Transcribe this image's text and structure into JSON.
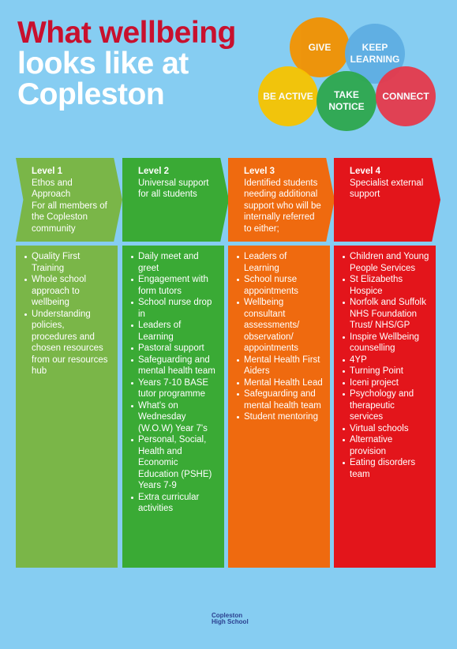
{
  "header": {
    "title_lines": [
      "What wellbeing",
      "looks like at",
      "Copleston"
    ]
  },
  "circles": [
    {
      "label_lines": [
        "GIVE"
      ],
      "color": "#f39200"
    },
    {
      "label_lines": [
        "KEEP",
        "LEARNING"
      ],
      "color": "#5eaee3"
    },
    {
      "label_lines": [
        "BE ACTIVE"
      ],
      "color": "#f7c400"
    },
    {
      "label_lines": [
        "TAKE",
        "NOTICE"
      ],
      "color": "#2ea84e"
    },
    {
      "label_lines": [
        "CONNECT"
      ],
      "color": "#e53a4c"
    }
  ],
  "levels": [
    {
      "heading": "Level 1",
      "header_lines": [
        "Ethos and Approach",
        "For all members of the Copleston community"
      ],
      "color": "#7ab648",
      "items": [
        "Quality First Training",
        "Whole school approach to wellbeing",
        "Understanding policies, procedures and chosen resources from our resources hub"
      ]
    },
    {
      "heading": "Level 2",
      "header_lines": [
        "Universal support for all students"
      ],
      "color": "#3aaa35",
      "items": [
        "Daily meet and greet",
        "Engagement with form tutors",
        "School nurse drop in",
        "Leaders of Learning",
        "Pastoral support",
        "Safeguarding and mental health team",
        "Years 7-10 BASE tutor programme",
        "What's on Wednesday (W.O.W) Year 7's",
        "Personal, Social, Health and Economic Education (PSHE) Years 7-9",
        "Extra curricular activities"
      ]
    },
    {
      "heading": "Level 3",
      "header_lines": [
        "Identified students needing additional support who will be internally referred to either;"
      ],
      "color": "#ef6a0f",
      "items": [
        "Leaders of Learning",
        "School nurse appointments",
        "Wellbeing consultant assessments/ observation/ appointments",
        "Mental Health First Aiders",
        "Mental Health Lead",
        "Safeguarding and mental health team",
        "Student mentoring"
      ]
    },
    {
      "heading": "Level 4",
      "header_lines": [
        "Specialist external support"
      ],
      "color": "#e3151b",
      "items": [
        "Children and Young People Services",
        "St Elizabeths Hospice",
        "Norfolk and Suffolk NHS Foundation Trust/ NHS/GP",
        "Inspire Wellbeing counselling",
        "4YP",
        "Turning Point",
        "Iceni project",
        "Psychology and therapeutic services",
        "Virtual schools",
        "Alternative provision",
        "Eating disorders team"
      ]
    }
  ],
  "logo": {
    "lines": [
      "Copleston",
      "High School"
    ]
  }
}
